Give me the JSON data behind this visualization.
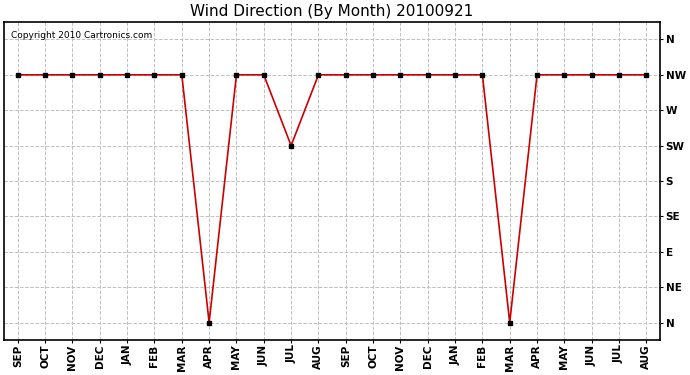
{
  "title": "Wind Direction (By Month) 20100921",
  "copyright": "Copyright 2010 Cartronics.com",
  "x_labels": [
    "SEP",
    "OCT",
    "NOV",
    "DEC",
    "JAN",
    "FEB",
    "MAR",
    "APR",
    "MAY",
    "JUN",
    "JUL",
    "AUG",
    "SEP",
    "OCT",
    "NOV",
    "DEC",
    "JAN",
    "FEB",
    "MAR",
    "APR",
    "MAY",
    "JUN",
    "JUL",
    "AUG"
  ],
  "y_labels": [
    "N",
    "NW",
    "W",
    "SW",
    "S",
    "SE",
    "E",
    "NE",
    "N"
  ],
  "data_values": [
    1,
    1,
    1,
    1,
    1,
    1,
    1,
    8,
    1,
    1,
    3,
    1,
    1,
    1,
    1,
    1,
    1,
    1,
    8,
    1,
    1,
    1,
    1,
    1
  ],
  "line_color": "#cc0000",
  "marker": "s",
  "marker_size": 3,
  "marker_color": "#000000",
  "bg_color": "#ffffff",
  "grid_color": "#c0c0c0",
  "title_fontsize": 11,
  "label_fontsize": 7.5,
  "copyright_fontsize": 6.5
}
